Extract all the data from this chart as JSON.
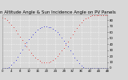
{
  "title": "Sun Altitude Angle & Sun Incidence Angle on PV Panels",
  "blue_label": "Sun Altitude Angle",
  "red_label": "Sun Incidence Angle",
  "x_values": [
    0,
    1,
    2,
    3,
    4,
    5,
    6,
    7,
    8,
    9,
    10,
    11,
    12,
    13,
    14,
    15,
    16,
    17,
    18,
    19,
    20,
    21,
    22,
    23,
    24,
    25,
    26,
    27,
    28,
    29,
    30,
    31,
    32,
    33,
    34,
    35,
    36,
    37,
    38,
    39,
    40,
    41,
    42,
    43,
    44,
    45,
    46,
    47,
    48
  ],
  "blue_y": [
    0,
    0,
    0,
    2,
    5,
    9,
    14,
    19,
    25,
    31,
    37,
    43,
    48,
    53,
    57,
    61,
    64,
    67,
    69,
    70,
    70,
    69,
    68,
    66,
    63,
    60,
    56,
    51,
    46,
    41,
    36,
    30,
    24,
    18,
    13,
    8,
    4,
    1,
    0,
    0,
    0,
    0,
    0,
    0,
    0,
    0,
    0,
    0,
    0
  ],
  "red_y": [
    85,
    83,
    80,
    77,
    73,
    68,
    63,
    58,
    52,
    47,
    41,
    36,
    31,
    26,
    22,
    18,
    15,
    12,
    10,
    9,
    9,
    10,
    11,
    13,
    16,
    20,
    24,
    29,
    34,
    39,
    45,
    51,
    56,
    62,
    67,
    72,
    76,
    80,
    83,
    85,
    87,
    88,
    88,
    88,
    88,
    88,
    88,
    88,
    88
  ],
  "blue_color": "#0000dd",
  "red_color": "#dd0000",
  "bg_color": "#d8d8d8",
  "plot_bg": "#d8d8d8",
  "grid_color": "#ffffff",
  "ylim": [
    0,
    90
  ],
  "xlim": [
    0,
    48
  ],
  "title_fontsize": 4.0,
  "tick_fontsize": 2.8,
  "marker_size": 1.0,
  "yticks": [
    0,
    10,
    20,
    30,
    40,
    50,
    60,
    70,
    80
  ],
  "ytick_labels": [
    "0",
    "10",
    "20",
    "30",
    "40",
    "50",
    "60",
    "70",
    "80"
  ]
}
